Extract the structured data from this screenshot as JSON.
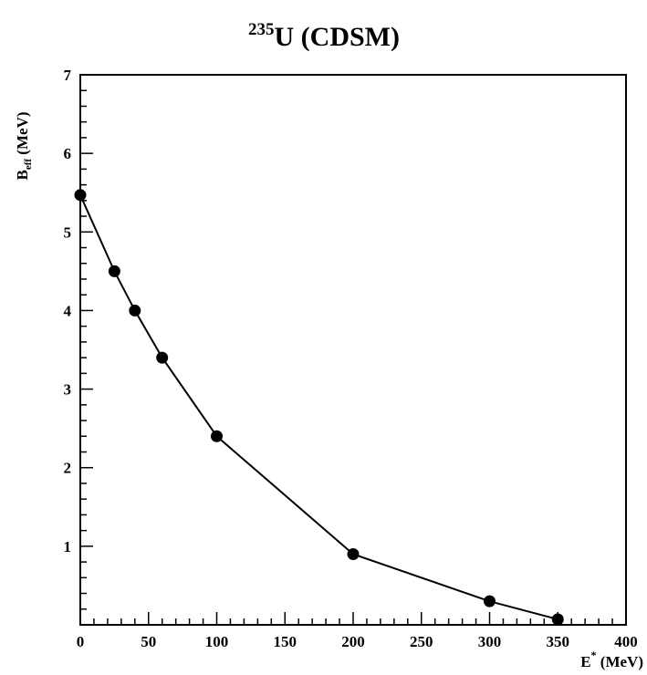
{
  "chart_data": {
    "type": "line",
    "title": {
      "superscript": "235",
      "main": "U (CDSM)"
    },
    "xlabel": {
      "main": "E",
      "superscript": "*",
      "units": " (MeV)"
    },
    "ylabel": {
      "main": "B",
      "subscript": "eff",
      "units": " (MeV)"
    },
    "xlim": [
      0,
      400
    ],
    "ylim": [
      0,
      7
    ],
    "x_ticks": [
      0,
      50,
      100,
      150,
      200,
      250,
      300,
      350,
      400
    ],
    "y_ticks": [
      1,
      2,
      3,
      4,
      5,
      6,
      7
    ],
    "grid": false,
    "legend": "none",
    "line_color": "#000000",
    "marker": "filled-circle",
    "series": [
      {
        "x": [
          0,
          25,
          40,
          60,
          100,
          200,
          300,
          350
        ],
        "y": [
          5.47,
          4.5,
          4.0,
          3.4,
          2.4,
          0.9,
          0.3,
          0.07
        ]
      }
    ]
  }
}
